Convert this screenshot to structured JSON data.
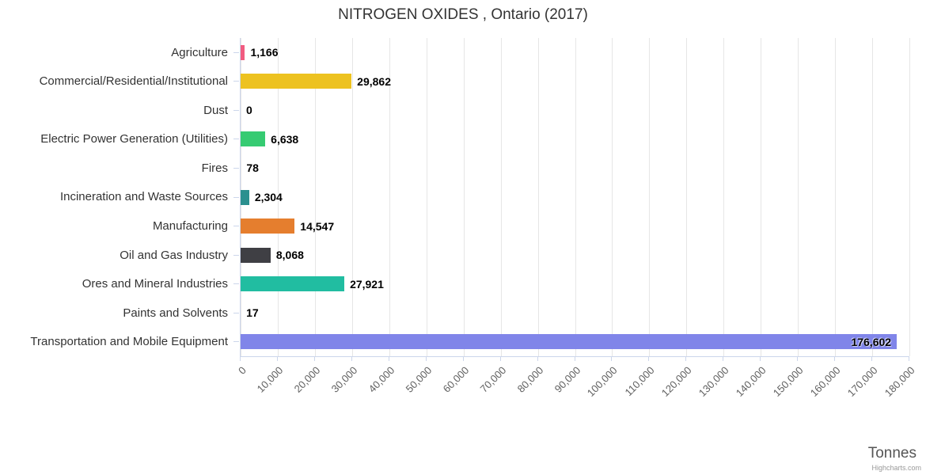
{
  "chart": {
    "title": "NITROGEN OXIDES , Ontario (2017)",
    "xaxis_title": "Tonnes",
    "credits": "Highcharts.com"
  },
  "chart_data": {
    "type": "bar",
    "orientation": "horizontal",
    "title": "NITROGEN OXIDES , Ontario (2017)",
    "xlabel": "Tonnes",
    "ylabel": "",
    "xlim": [
      0,
      180000
    ],
    "x_tick_step": 10000,
    "grid": true,
    "legend": false,
    "categories": [
      "Agriculture",
      "Commercial/Residential/Institutional",
      "Dust",
      "Electric Power Generation (Utilities)",
      "Fires",
      "Incineration and Waste Sources",
      "Manufacturing",
      "Oil and Gas Industry",
      "Ores and Mineral Industries",
      "Paints and Solvents",
      "Transportation and Mobile Equipment"
    ],
    "values": [
      1166,
      29862,
      0,
      6638,
      78,
      2304,
      14547,
      8068,
      27921,
      17,
      176602
    ],
    "value_labels": [
      "1,166",
      "29,862",
      "0",
      "6,638",
      "78",
      "2,304",
      "14,547",
      "8,068",
      "27,921",
      "17",
      "176,602"
    ],
    "bar_colors": [
      "#f15c80",
      "#edc220",
      "#999999",
      "#36cb72",
      "#999999",
      "#2b908f",
      "#e57e2e",
      "#3f3f44",
      "#21bda1",
      "#999999",
      "#8085e9"
    ],
    "x_tick_labels": [
      "0",
      "10,000",
      "20,000",
      "30,000",
      "40,000",
      "50,000",
      "60,000",
      "70,000",
      "80,000",
      "90,000",
      "100,000",
      "110,000",
      "120,000",
      "130,000",
      "140,000",
      "150,000",
      "160,000",
      "170,000",
      "180,000"
    ]
  }
}
